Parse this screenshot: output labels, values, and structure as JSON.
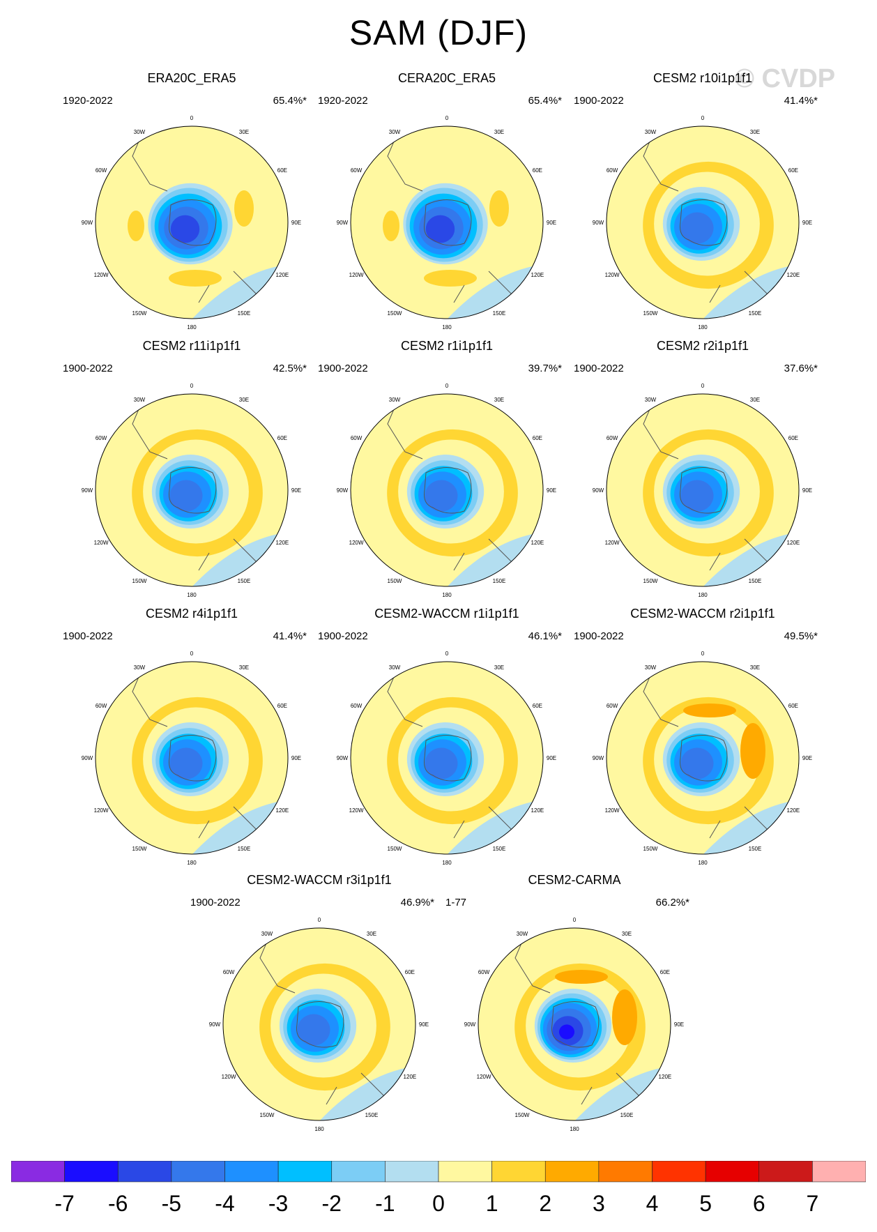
{
  "title": "SAM (DJF)",
  "watermark": "© CVDP",
  "longitude_labels": [
    "0",
    "30E",
    "60E",
    "90E",
    "120E",
    "150E",
    "180",
    "150W",
    "120W",
    "90W",
    "60W",
    "30W"
  ],
  "panels": [
    {
      "title": "ERA20C_ERA5",
      "period": "1920-2022",
      "variance": "65.4%*",
      "variant": "obs"
    },
    {
      "title": "CERA20C_ERA5",
      "period": "1920-2022",
      "variance": "65.4%*",
      "variant": "obs"
    },
    {
      "title": "CESM2 r10i1p1f1",
      "period": "1900-2022",
      "variance": "41.4%*",
      "variant": "model"
    },
    {
      "title": "CESM2 r11i1p1f1",
      "period": "1900-2022",
      "variance": "42.5%*",
      "variant": "model"
    },
    {
      "title": "CESM2 r1i1p1f1",
      "period": "1900-2022",
      "variance": "39.7%*",
      "variant": "model"
    },
    {
      "title": "CESM2 r2i1p1f1",
      "period": "1900-2022",
      "variance": "37.6%*",
      "variant": "model"
    },
    {
      "title": "CESM2 r4i1p1f1",
      "period": "1900-2022",
      "variance": "41.4%*",
      "variant": "model"
    },
    {
      "title": "CESM2-WACCM r1i1p1f1",
      "period": "1900-2022",
      "variance": "46.1%*",
      "variant": "model"
    },
    {
      "title": "CESM2-WACCM r2i1p1f1",
      "period": "1900-2022",
      "variance": "49.5%*",
      "variant": "strong"
    },
    {
      "title": "CESM2-WACCM r3i1p1f1",
      "period": "1900-2022",
      "variance": "46.9%*",
      "variant": "model"
    },
    {
      "title": "CESM2-CARMA",
      "period": "1-77",
      "variance": "66.2%*",
      "variant": "carma"
    }
  ],
  "chart_data": {
    "type": "heatmap",
    "projection": "south polar stereographic",
    "colorbar": {
      "labels": [
        "-7",
        "-6",
        "-5",
        "-4",
        "-3",
        "-2",
        "-1",
        "0",
        "1",
        "2",
        "3",
        "4",
        "5",
        "6",
        "7"
      ],
      "colors": [
        "#8a2be2",
        "#1a0dff",
        "#2a48e6",
        "#3478eb",
        "#1e90ff",
        "#00bfff",
        "#7ccdf5",
        "#b3def0",
        "#fff8a0",
        "#ffd633",
        "#ffaa00",
        "#ff7a00",
        "#ff3300",
        "#e60000",
        "#cc1a1a",
        "#ffb0b0"
      ]
    }
  }
}
